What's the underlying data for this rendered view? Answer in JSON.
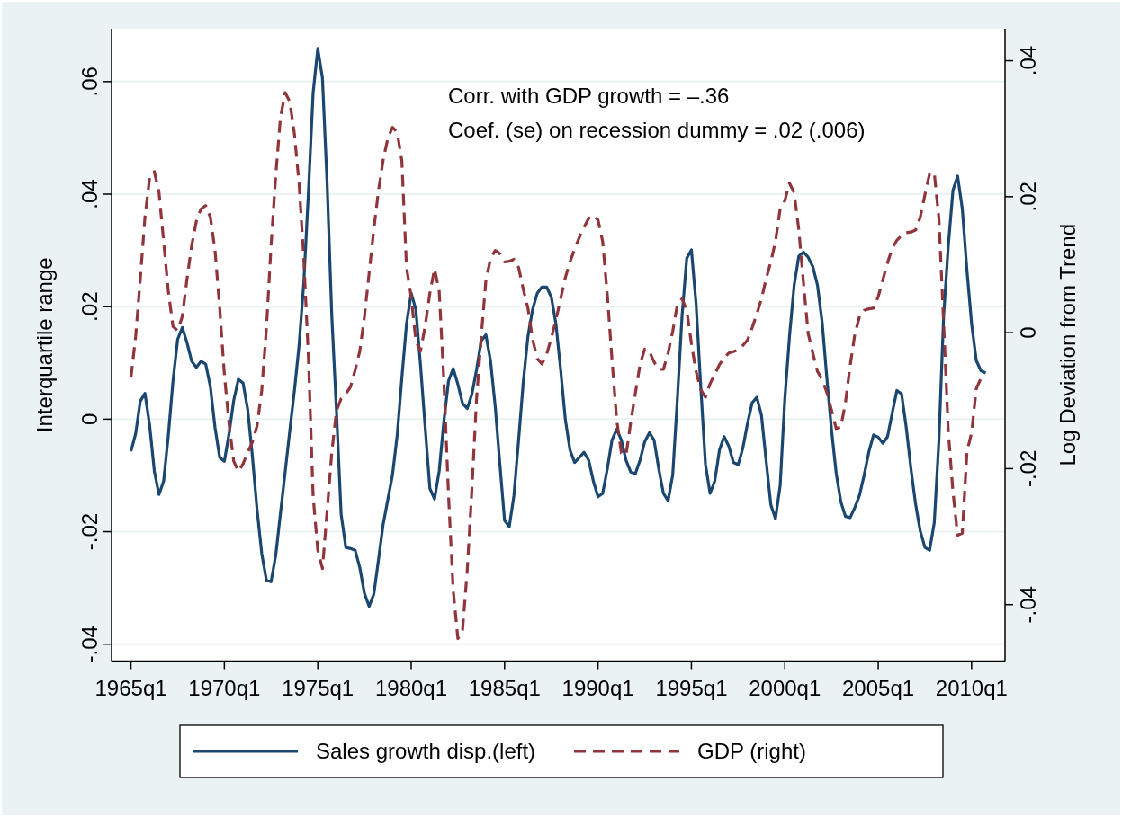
{
  "chart_data": {
    "type": "line",
    "ylabel": "Interquartile range",
    "y2label": "Log Deviation from Trend",
    "annotations": [
      "Corr. with GDP growth = –.36",
      "Coef. (se) on recession dummy = .02 (.006)"
    ],
    "categories": [
      "1965q1",
      null,
      null,
      null,
      null,
      null,
      null,
      null,
      null,
      null,
      null,
      null,
      null,
      null,
      null,
      null,
      null,
      null,
      null,
      null,
      "1970q1",
      null,
      null,
      null,
      null,
      null,
      null,
      null,
      null,
      null,
      null,
      null,
      null,
      null,
      null,
      null,
      null,
      null,
      null,
      null,
      "1975q1",
      null,
      null,
      null,
      null,
      null,
      null,
      null,
      null,
      null,
      null,
      null,
      null,
      null,
      null,
      null,
      null,
      null,
      null,
      null,
      "1980q1",
      null,
      null,
      null,
      null,
      null,
      null,
      null,
      null,
      null,
      null,
      null,
      null,
      null,
      null,
      null,
      null,
      null,
      null,
      null,
      "1985q1",
      null,
      null,
      null,
      null,
      null,
      null,
      null,
      null,
      null,
      null,
      null,
      null,
      null,
      null,
      null,
      null,
      null,
      null,
      null,
      "1990q1",
      null,
      null,
      null,
      null,
      null,
      null,
      null,
      null,
      null,
      null,
      null,
      null,
      null,
      null,
      null,
      null,
      null,
      null,
      null,
      "1995q1",
      null,
      null,
      null,
      null,
      null,
      null,
      null,
      null,
      null,
      null,
      null,
      null,
      null,
      null,
      null,
      null,
      null,
      null,
      null,
      "2000q1",
      null,
      null,
      null,
      null,
      null,
      null,
      null,
      null,
      null,
      null,
      null,
      null,
      null,
      null,
      null,
      null,
      null,
      null,
      null,
      "2005q1",
      null,
      null,
      null,
      null,
      null,
      null,
      null,
      null,
      null,
      null,
      null,
      null,
      null,
      null,
      null,
      null,
      null,
      null,
      null,
      "2010q1",
      null,
      null,
      null
    ],
    "ylim": [
      -0.043,
      0.0694
    ],
    "yticks": [
      {
        "value": -0.04,
        "label": "-.04"
      },
      {
        "value": -0.02,
        "label": "-.02"
      },
      0,
      {
        "value": 0.02,
        "label": ".02"
      },
      {
        "value": 0.04,
        "label": ".04"
      },
      {
        "value": 0.06,
        "label": ".06"
      }
    ],
    "y2lim": [
      -0.0483,
      0.0447
    ],
    "y2ticks": [
      {
        "value": -0.04,
        "label": "-.04"
      },
      {
        "value": -0.02,
        "label": "-.02"
      },
      0,
      {
        "value": 0.02,
        "label": ".02"
      },
      {
        "value": 0.04,
        "label": ".04"
      }
    ],
    "grid": "y",
    "legend": "bottom",
    "series": [
      {
        "name": "Sales growth disp.(left)",
        "color": "#1a476f",
        "line_style": "solid",
        "values": [
          -0.0057,
          -0.0026,
          0.0032,
          0.0046,
          -0.0011,
          -0.0092,
          -0.0134,
          -0.011,
          -0.0029,
          0.0068,
          0.0142,
          0.0163,
          0.0136,
          0.0103,
          0.0092,
          0.0103,
          0.0098,
          0.0058,
          -0.0015,
          -0.0068,
          -0.0075,
          -0.0026,
          0.0033,
          0.0071,
          0.0064,
          0.0017,
          -0.0066,
          -0.0161,
          -0.0239,
          -0.0286,
          -0.0289,
          -0.0242,
          -0.0168,
          -0.0095,
          -0.0021,
          0.0051,
          0.0132,
          0.0242,
          0.0404,
          0.058,
          0.0659,
          0.0606,
          0.0419,
          0.0184,
          0.0015,
          -0.0169,
          -0.0228,
          -0.023,
          -0.0233,
          -0.0264,
          -0.031,
          -0.0333,
          -0.0311,
          -0.025,
          -0.0187,
          -0.0143,
          -0.0099,
          -0.0029,
          0.0073,
          0.0169,
          0.0224,
          0.0195,
          0.0096,
          -0.0015,
          -0.0123,
          -0.0142,
          -0.0092,
          -0.0004,
          0.0068,
          0.009,
          0.0062,
          0.0028,
          0.0019,
          0.0044,
          0.0088,
          0.0139,
          0.015,
          0.0103,
          0.0022,
          -0.0081,
          -0.018,
          -0.0191,
          -0.0136,
          -0.0037,
          0.0066,
          0.0147,
          0.0195,
          0.0224,
          0.0235,
          0.0235,
          0.0217,
          0.0169,
          0.0088,
          0,
          -0.0055,
          -0.0077,
          -0.0068,
          -0.0059,
          -0.0073,
          -0.011,
          -0.0138,
          -0.0132,
          -0.0088,
          -0.0037,
          -0.0018,
          -0.0037,
          -0.0073,
          -0.0094,
          -0.0097,
          -0.0073,
          -0.004,
          -0.0024,
          -0.0037,
          -0.0088,
          -0.0132,
          -0.0145,
          -0.0099,
          0.0037,
          0.0184,
          0.0286,
          0.0301,
          0.0205,
          0.0058,
          -0.008,
          -0.0132,
          -0.011,
          -0.0055,
          -0.0031,
          -0.0048,
          -0.0077,
          -0.0081,
          -0.0052,
          -0.0008,
          0.0029,
          0.0039,
          0.0007,
          -0.0074,
          -0.0152,
          -0.0177,
          -0.0118,
          0.0036,
          0.0147,
          0.0238,
          0.029,
          0.0297,
          0.0288,
          0.0271,
          0.0238,
          0.0172,
          0.0073,
          -0.0019,
          -0.0096,
          -0.0147,
          -0.0173,
          -0.0175,
          -0.0157,
          -0.0135,
          -0.0099,
          -0.0058,
          -0.0028,
          -0.0032,
          -0.0043,
          -0.0031,
          0.0011,
          0.0051,
          0.0045,
          -0.0015,
          -0.0088,
          -0.0151,
          -0.0199,
          -0.0228,
          -0.0233,
          -0.0184,
          -0.0037,
          0.0183,
          0.0308,
          0.0407,
          0.0432,
          0.0374,
          0.0264,
          0.0169,
          0.0104,
          0.0086,
          0.0082
        ]
      },
      {
        "name": "GDP (right)",
        "color": "#90353b",
        "line_style": "dashed",
        "axis": "y2",
        "values": [
          -0.0066,
          -0.0006,
          0.0079,
          0.017,
          0.0228,
          0.0237,
          0.0207,
          0.0134,
          0.0061,
          0.0009,
          0.0003,
          0.0024,
          0.0079,
          0.0128,
          0.0164,
          0.0182,
          0.0187,
          0.017,
          0.0121,
          0.0036,
          -0.0061,
          -0.0134,
          -0.0189,
          -0.0204,
          -0.0193,
          -0.0176,
          -0.0161,
          -0.0137,
          -0.0085,
          0.0006,
          0.0128,
          0.0231,
          0.0316,
          0.0353,
          0.034,
          0.0292,
          0.0219,
          0.0109,
          -0.0037,
          -0.024,
          -0.032,
          -0.0347,
          -0.0262,
          -0.0176,
          -0.0115,
          -0.0097,
          -0.009,
          -0.008,
          -0.0055,
          -0.0027,
          0.0024,
          0.0088,
          0.0152,
          0.0209,
          0.0254,
          0.0286,
          0.0302,
          0.0295,
          0.0253,
          0.0096,
          0.0053,
          -0.0012,
          -0.0027,
          0.001,
          0.0058,
          0.0094,
          0.0061,
          -0.0071,
          -0.024,
          -0.0379,
          -0.045,
          -0.0437,
          -0.035,
          -0.0231,
          -0.0097,
          -0.0006,
          0.0077,
          0.0109,
          0.0121,
          0.0116,
          0.0104,
          0.0105,
          0.0108,
          0.0096,
          0.0064,
          0.0036,
          -0.001,
          -0.0038,
          -0.0046,
          -0.0032,
          -0.0008,
          0.0019,
          0.005,
          0.0081,
          0.0104,
          0.0123,
          0.014,
          0.0155,
          0.0168,
          0.0173,
          0.0166,
          0.0134,
          0.0055,
          -0.004,
          -0.0128,
          -0.0177,
          -0.018,
          -0.0132,
          -0.0089,
          -0.0047,
          -0.0024,
          -0.0028,
          -0.0043,
          -0.0054,
          -0.0054,
          -0.003,
          0.0002,
          0.0042,
          0.005,
          0.0033,
          -0.0016,
          -0.0057,
          -0.0084,
          -0.0095,
          -0.0075,
          -0.0061,
          -0.0047,
          -0.0037,
          -0.003,
          -0.0028,
          -0.0025,
          -0.0019,
          -0.0011,
          0.0007,
          0.0027,
          0.005,
          0.0079,
          0.0104,
          0.0134,
          0.0182,
          0.0194,
          0.022,
          0.0206,
          0.0151,
          0.0073,
          -0.0001,
          -0.003,
          -0.0057,
          -0.0069,
          -0.0088,
          -0.0114,
          -0.0141,
          -0.0139,
          -0.0102,
          -0.0048,
          -0.0002,
          0.0024,
          0.0033,
          0.0035,
          0.0036,
          0.0053,
          0.0078,
          0.0103,
          0.0124,
          0.0136,
          0.0143,
          0.0147,
          0.0148,
          0.0151,
          0.017,
          0.0203,
          0.0234,
          0.0235,
          0.0167,
          0.0015,
          -0.0145,
          -0.0234,
          -0.0298,
          -0.0295,
          -0.0175,
          -0.0147,
          -0.0082,
          -0.0067,
          -0.007
        ]
      }
    ]
  }
}
